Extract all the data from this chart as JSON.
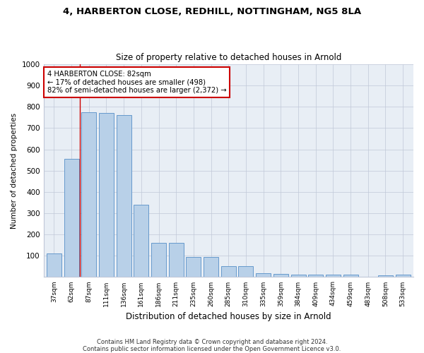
{
  "title1": "4, HARBERTON CLOSE, REDHILL, NOTTINGHAM, NG5 8LA",
  "title2": "Size of property relative to detached houses in Arnold",
  "xlabel": "Distribution of detached houses by size in Arnold",
  "ylabel": "Number of detached properties",
  "categories": [
    "37sqm",
    "62sqm",
    "87sqm",
    "111sqm",
    "136sqm",
    "161sqm",
    "186sqm",
    "211sqm",
    "235sqm",
    "260sqm",
    "285sqm",
    "310sqm",
    "335sqm",
    "359sqm",
    "384sqm",
    "409sqm",
    "434sqm",
    "459sqm",
    "483sqm",
    "508sqm",
    "533sqm"
  ],
  "values": [
    110,
    555,
    775,
    770,
    760,
    340,
    160,
    160,
    95,
    95,
    50,
    50,
    18,
    15,
    12,
    10,
    10,
    10,
    0,
    8,
    10
  ],
  "bar_color": "#b8d0e8",
  "bar_edge_color": "#6699cc",
  "annotation_text": "4 HARBERTON CLOSE: 82sqm\n← 17% of detached houses are smaller (498)\n82% of semi-detached houses are larger (2,372) →",
  "annotation_box_color": "#ffffff",
  "annotation_box_edge": "#cc0000",
  "footer1": "Contains HM Land Registry data © Crown copyright and database right 2024.",
  "footer2": "Contains public sector information licensed under the Open Government Licence v3.0.",
  "ylim": [
    0,
    1000
  ],
  "yticks": [
    0,
    100,
    200,
    300,
    400,
    500,
    600,
    700,
    800,
    900,
    1000
  ],
  "background_color": "#e8eef5",
  "vline_pos": 1.5
}
